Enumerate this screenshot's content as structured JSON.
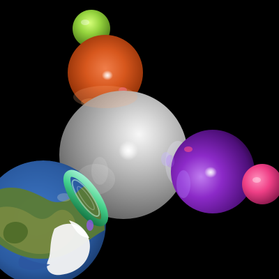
{
  "scene": {
    "background_color": "#000000",
    "objects": [
      {
        "name": "center-sphere",
        "kind": "glass",
        "color": "#c9c9c9"
      },
      {
        "name": "orange-sphere",
        "kind": "glass",
        "color": "#d2521b"
      },
      {
        "name": "green-sphere",
        "kind": "solid",
        "color": "#8fd43a"
      },
      {
        "name": "purple-sphere",
        "kind": "glass",
        "color": "#7a1fb8"
      },
      {
        "name": "pink-sphere",
        "kind": "solid",
        "color": "#ef3f86"
      },
      {
        "name": "earth-sphere",
        "kind": "textured",
        "color": "#2c5aa3"
      },
      {
        "name": "green-ring",
        "kind": "ring",
        "color": "#44d08a"
      }
    ]
  }
}
